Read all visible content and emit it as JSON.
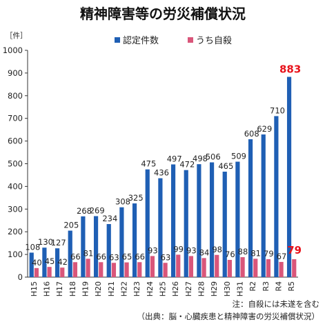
{
  "chart_data": {
    "type": "bar",
    "title": "精神障害等の労災補償状況",
    "ylabel": "［件］",
    "ylim": [
      0,
      1000
    ],
    "yticks": [
      "0",
      "100",
      "200",
      "300",
      "400",
      "500",
      "600",
      "700",
      "800",
      "900",
      "1000"
    ],
    "grid": false,
    "legend_position": "top-right",
    "categories": [
      "H15",
      "H16",
      "H17",
      "H18",
      "H19",
      "H20",
      "H21",
      "H22",
      "H23",
      "H24",
      "H25",
      "H26",
      "H27",
      "H28",
      "H29",
      "H30",
      "H31",
      "R2",
      "R3",
      "R4",
      "R5"
    ],
    "series": [
      {
        "name": "認定件数",
        "color": "#1f5fb4",
        "values": [
          108,
          130,
          127,
          205,
          268,
          269,
          234,
          308,
          325,
          475,
          436,
          497,
          472,
          498,
          506,
          465,
          509,
          608,
          629,
          710,
          883
        ]
      },
      {
        "name": "うち自殺",
        "color": "#d9567a",
        "values": [
          40,
          45,
          42,
          66,
          81,
          66,
          63,
          65,
          66,
          93,
          63,
          99,
          93,
          84,
          98,
          76,
          88,
          81,
          79,
          67,
          79
        ]
      }
    ],
    "highlight_color": "#e8121b",
    "notes": [
      "注：自殺には未遂を含む",
      "（出典：脳・心臓疾患と精神障害の労災補償状況）"
    ]
  }
}
